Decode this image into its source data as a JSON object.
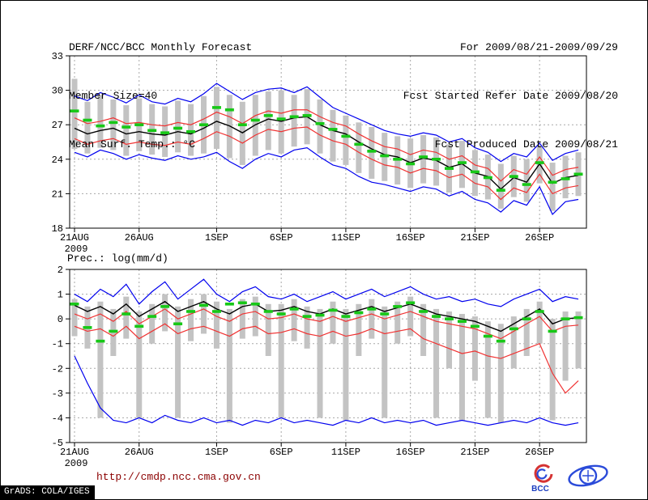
{
  "header": {
    "title": "DERF/NCC/BCC Monthly Forecast",
    "member_size": "Member Size=40",
    "for_range": "For 2009/08/21-2009/09/29",
    "refer_date": "Fcst Started Refer Date 2009/08/20",
    "produced_date": "Fcst Produced Date 2009/08/21"
  },
  "footer": {
    "url": "http://cmdp.ncc.cma.gov.cn",
    "grads_stamp": "GrADS: COLA/IGES",
    "bcc_label": "BCC"
  },
  "chart_data": [
    {
      "type": "line",
      "title": "Mean Surf. Temp.: °C",
      "ylim": [
        18,
        33
      ],
      "yticks": [
        18,
        21,
        24,
        27,
        30,
        33
      ],
      "n_points": 40,
      "x_tick_indices": [
        0,
        5,
        11,
        16,
        21,
        26,
        31,
        36
      ],
      "x_tick_labels": [
        "21AUG",
        "26AUG",
        "1SEP",
        "6SEP",
        "11SEP",
        "16SEP",
        "21SEP",
        "26SEP"
      ],
      "x_year_label": "2009",
      "grid": true,
      "series": [
        {
          "name": "ensemble-max",
          "color": "#0000ee",
          "values": [
            29.5,
            29.1,
            29.8,
            29.4,
            28.9,
            29.6,
            29.0,
            28.8,
            29.3,
            29.0,
            29.7,
            30.6,
            29.9,
            29.2,
            29.8,
            30.1,
            30.2,
            29.8,
            30.3,
            29.4,
            28.5,
            28.0,
            27.5,
            27.0,
            26.5,
            26.2,
            26.0,
            26.3,
            26.1,
            25.5,
            25.8,
            25.0,
            24.6,
            23.8,
            24.5,
            24.2,
            25.4,
            23.9,
            24.5,
            24.8
          ]
        },
        {
          "name": "upper-spread",
          "color": "#f03232",
          "values": [
            27.6,
            27.1,
            27.3,
            27.6,
            27.1,
            27.2,
            27.0,
            26.9,
            27.2,
            27.0,
            27.5,
            28.1,
            27.7,
            27.1,
            27.8,
            28.2,
            28.0,
            28.3,
            28.3,
            27.7,
            27.2,
            26.9,
            26.2,
            25.6,
            25.1,
            24.9,
            24.4,
            24.8,
            24.6,
            24.0,
            24.3,
            23.5,
            23.2,
            22.1,
            23.1,
            22.7,
            24.2,
            22.6,
            23.1,
            23.3
          ]
        },
        {
          "name": "ensemble-mean",
          "color": "#000000",
          "values": [
            26.7,
            26.2,
            26.5,
            26.7,
            26.2,
            26.4,
            26.2,
            26.1,
            26.4,
            26.2,
            26.7,
            27.3,
            26.9,
            26.3,
            27.0,
            27.5,
            27.3,
            27.6,
            27.7,
            27.0,
            26.5,
            26.2,
            25.5,
            24.9,
            24.4,
            24.2,
            23.7,
            24.1,
            23.9,
            23.3,
            23.6,
            22.8,
            22.5,
            21.4,
            22.4,
            22.0,
            23.6,
            21.9,
            22.4,
            22.6
          ]
        },
        {
          "name": "lower-spread",
          "color": "#f03232",
          "values": [
            25.8,
            25.3,
            25.6,
            25.8,
            25.3,
            25.5,
            25.3,
            25.2,
            25.5,
            25.3,
            25.8,
            26.4,
            26.0,
            25.4,
            26.1,
            26.6,
            26.4,
            26.7,
            26.8,
            26.1,
            25.6,
            25.3,
            24.6,
            24.0,
            23.5,
            23.3,
            22.8,
            23.2,
            23.0,
            22.4,
            22.7,
            21.9,
            21.6,
            20.5,
            21.5,
            21.1,
            22.7,
            21.0,
            21.5,
            21.7
          ]
        },
        {
          "name": "ensemble-min",
          "color": "#0000ee",
          "values": [
            24.6,
            24.2,
            24.8,
            24.5,
            24.0,
            24.4,
            24.1,
            23.9,
            24.3,
            24.0,
            24.2,
            24.6,
            23.8,
            23.2,
            24.0,
            24.5,
            24.2,
            24.8,
            25.0,
            24.2,
            23.5,
            23.2,
            22.5,
            22.0,
            21.8,
            21.5,
            21.2,
            21.6,
            21.4,
            20.8,
            21.2,
            20.5,
            20.2,
            19.4,
            20.4,
            20.0,
            21.6,
            19.2,
            20.3,
            20.5
          ]
        }
      ],
      "obs": {
        "name": "observation",
        "color": "#17c817",
        "values": [
          28.2,
          27.4,
          26.9,
          27.2,
          26.8,
          27.0,
          26.5,
          26.3,
          26.7,
          26.4,
          27.0,
          28.5,
          28.3,
          27.0,
          27.4,
          27.8,
          27.5,
          27.7,
          27.8,
          27.1,
          26.6,
          26.0,
          25.3,
          24.7,
          24.3,
          24.0,
          23.6,
          24.2,
          24.0,
          23.2,
          23.7,
          22.9,
          22.4,
          21.3,
          22.5,
          21.8,
          23.7,
          22.0,
          22.3,
          22.7
        ]
      },
      "spread_bars": {
        "color": "#c3c3c3",
        "high": [
          31.0,
          29.0,
          29.6,
          29.2,
          28.7,
          29.3,
          28.8,
          28.6,
          29.1,
          28.8,
          29.5,
          30.3,
          29.6,
          29.0,
          29.6,
          29.9,
          30.0,
          29.6,
          30.1,
          29.2,
          28.3,
          27.8,
          27.2,
          26.8,
          26.3,
          26.0,
          25.8,
          26.1,
          25.9,
          25.3,
          25.6,
          24.8,
          24.4,
          23.6,
          24.3,
          24.0,
          25.2,
          23.7,
          24.3,
          24.6
        ],
        "low": [
          24.9,
          24.5,
          25.0,
          24.8,
          24.3,
          24.7,
          24.4,
          24.2,
          24.6,
          24.3,
          24.5,
          24.9,
          24.1,
          23.5,
          24.3,
          24.8,
          24.5,
          25.1,
          25.3,
          24.5,
          23.8,
          23.5,
          22.8,
          22.3,
          22.1,
          21.8,
          21.5,
          21.9,
          21.7,
          21.1,
          21.5,
          20.8,
          20.5,
          19.7,
          20.7,
          20.3,
          21.9,
          19.5,
          20.6,
          20.8
        ]
      }
    },
    {
      "type": "line",
      "title": "Prec.: log(mm/d)",
      "ylim": [
        -5,
        2
      ],
      "yticks": [
        -5,
        -4,
        -3,
        -2,
        -1,
        0,
        1,
        2
      ],
      "n_points": 40,
      "x_tick_indices": [
        0,
        5,
        11,
        16,
        21,
        26,
        31,
        36
      ],
      "x_tick_labels": [
        "21AUG",
        "26AUG",
        "1SEP",
        "6SEP",
        "11SEP",
        "16SEP",
        "21SEP",
        "26SEP"
      ],
      "x_year_label": "2009",
      "grid": true,
      "series": [
        {
          "name": "ensemble-max",
          "color": "#0000ee",
          "values": [
            1.0,
            0.7,
            1.2,
            0.9,
            1.4,
            0.6,
            1.1,
            1.5,
            0.8,
            1.2,
            1.6,
            1.0,
            0.7,
            1.1,
            1.3,
            0.9,
            0.8,
            1.0,
            0.7,
            0.9,
            1.1,
            0.8,
            1.0,
            1.2,
            0.9,
            1.1,
            1.3,
            1.0,
            0.8,
            0.9,
            0.7,
            0.8,
            0.6,
            0.5,
            0.8,
            1.0,
            1.2,
            0.7,
            0.9,
            0.8
          ]
        },
        {
          "name": "upper-spread",
          "color": "#f03232",
          "values": [
            0.2,
            0.0,
            0.2,
            -0.1,
            0.3,
            -0.2,
            0.1,
            0.4,
            0.0,
            0.2,
            0.4,
            0.1,
            -0.1,
            0.2,
            0.3,
            0.0,
            0.05,
            0.2,
            0.0,
            -0.1,
            0.1,
            -0.1,
            0.05,
            0.2,
            0.0,
            0.15,
            0.3,
            0.1,
            -0.1,
            -0.2,
            -0.3,
            -0.4,
            -0.6,
            -0.8,
            -0.5,
            -0.2,
            0.1,
            -0.5,
            -0.3,
            -0.25
          ]
        },
        {
          "name": "ensemble-mean",
          "color": "#000000",
          "values": [
            0.55,
            0.3,
            0.5,
            0.2,
            0.6,
            0.1,
            0.4,
            0.7,
            0.3,
            0.5,
            0.7,
            0.4,
            0.2,
            0.5,
            0.6,
            0.3,
            0.35,
            0.5,
            0.3,
            0.2,
            0.4,
            0.2,
            0.35,
            0.5,
            0.3,
            0.45,
            0.6,
            0.4,
            0.2,
            0.1,
            0.0,
            -0.1,
            -0.3,
            -0.5,
            -0.2,
            0.1,
            0.4,
            -0.2,
            0.0,
            0.05
          ]
        },
        {
          "name": "lower-spread",
          "color": "#f03232",
          "values": [
            -0.3,
            -0.5,
            -0.4,
            -0.7,
            -0.3,
            -0.8,
            -0.5,
            -0.2,
            -0.6,
            -0.4,
            -0.3,
            -0.5,
            -0.7,
            -0.4,
            -0.3,
            -0.6,
            -0.55,
            -0.4,
            -0.6,
            -0.7,
            -0.5,
            -0.7,
            -0.6,
            -0.4,
            -0.6,
            -0.5,
            -0.4,
            -0.8,
            -1.0,
            -1.2,
            -1.4,
            -1.3,
            -1.5,
            -1.6,
            -1.4,
            -1.2,
            -1.0,
            -2.2,
            -3.0,
            -2.5
          ]
        },
        {
          "name": "ensemble-min",
          "color": "#0000ee",
          "values": [
            -1.5,
            -2.6,
            -3.6,
            -4.1,
            -4.2,
            -4.0,
            -4.2,
            -3.9,
            -4.1,
            -4.2,
            -4.0,
            -4.2,
            -4.1,
            -4.3,
            -4.1,
            -4.2,
            -4.0,
            -4.2,
            -4.1,
            -4.2,
            -4.3,
            -4.1,
            -4.2,
            -4.0,
            -4.2,
            -4.1,
            -4.2,
            -4.1,
            -4.3,
            -4.2,
            -4.1,
            -4.2,
            -4.3,
            -4.2,
            -4.1,
            -4.2,
            -4.0,
            -4.2,
            -4.3,
            -4.2
          ]
        }
      ],
      "obs": {
        "name": "observation",
        "color": "#17c817",
        "values": [
          0.6,
          -0.35,
          -0.9,
          -0.5,
          0.2,
          -0.3,
          0.1,
          0.5,
          -0.2,
          0.3,
          0.55,
          0.3,
          0.6,
          0.65,
          0.6,
          0.3,
          0.2,
          0.4,
          0.1,
          0.15,
          0.35,
          0.1,
          0.25,
          0.4,
          0.2,
          0.5,
          0.65,
          0.3,
          0.1,
          0.0,
          -0.1,
          -0.3,
          -0.7,
          -0.9,
          -0.4,
          0.0,
          0.3,
          -0.5,
          0.0,
          0.05
        ]
      },
      "spread_bars": {
        "color": "#c3c3c3",
        "high": [
          0.8,
          0.5,
          0.7,
          0.4,
          0.9,
          0.3,
          0.6,
          1.0,
          0.5,
          0.8,
          1.0,
          0.7,
          0.4,
          0.8,
          0.9,
          0.6,
          0.6,
          0.8,
          0.5,
          0.4,
          0.7,
          0.4,
          0.6,
          0.8,
          0.5,
          0.7,
          0.9,
          0.6,
          0.4,
          0.3,
          0.2,
          0.1,
          -0.1,
          -0.2,
          0.1,
          0.4,
          0.7,
          0.0,
          0.3,
          0.3
        ],
        "low": [
          -0.7,
          -1.2,
          -4.0,
          -1.5,
          -0.8,
          -4.0,
          -1.0,
          -0.5,
          -4.0,
          -0.9,
          -0.6,
          -1.2,
          -4.2,
          -0.8,
          -0.7,
          -1.5,
          -4.0,
          -0.9,
          -1.2,
          -4.0,
          -1.0,
          -4.1,
          -1.5,
          -0.8,
          -4.0,
          -1.0,
          -0.7,
          -1.5,
          -4.0,
          -2.0,
          -4.1,
          -2.5,
          -4.0,
          -4.2,
          -2.0,
          -1.5,
          -1.0,
          -4.1,
          -2.5,
          -2.0
        ]
      }
    }
  ]
}
